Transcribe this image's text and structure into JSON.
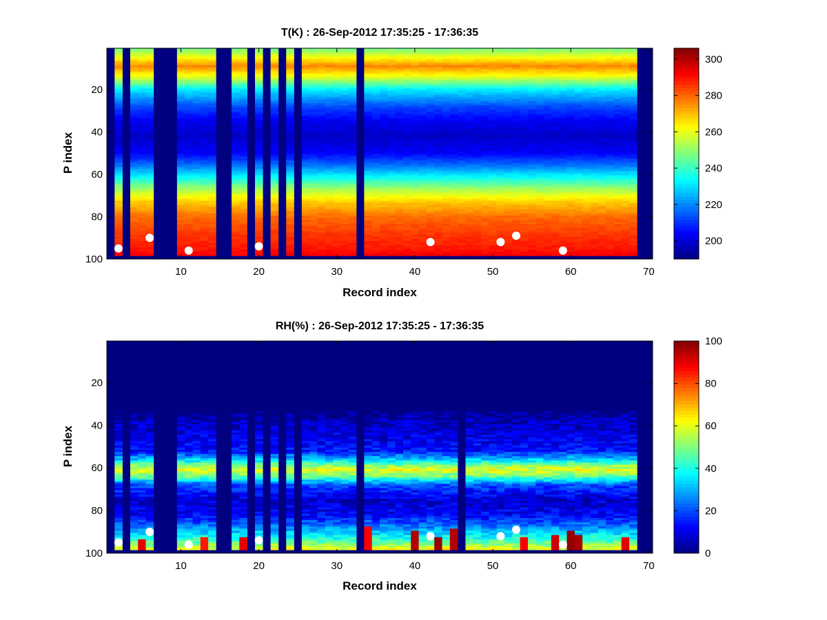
{
  "chart_data": [
    {
      "type": "heatmap",
      "title": "T(K) : 26-Sep-2012 17:35:25 - 17:36:35",
      "xlabel": "Record index",
      "ylabel": "P index",
      "xlim": [
        0.5,
        70.5
      ],
      "ylim": [
        100,
        1
      ],
      "xticks": [
        10,
        20,
        30,
        40,
        50,
        60,
        70
      ],
      "yticks": [
        20,
        40,
        60,
        80,
        100
      ],
      "colorbar": {
        "range": [
          190,
          306
        ],
        "ticks": [
          200,
          220,
          240,
          260,
          280,
          300
        ]
      },
      "colormap": "jet",
      "bottom_level_rows": 98,
      "missing_records": [
        1,
        3,
        7,
        8,
        9,
        15,
        16,
        19,
        21,
        23,
        25,
        33,
        69,
        70
      ],
      "profile_levels": [
        {
          "p": 1,
          "value": 248
        },
        {
          "p": 5,
          "value": 262
        },
        {
          "p": 9,
          "value": 276
        },
        {
          "p": 14,
          "value": 260
        },
        {
          "p": 20,
          "value": 232
        },
        {
          "p": 28,
          "value": 213
        },
        {
          "p": 35,
          "value": 203
        },
        {
          "p": 42,
          "value": 198
        },
        {
          "p": 50,
          "value": 204
        },
        {
          "p": 56,
          "value": 218
        },
        {
          "p": 62,
          "value": 236
        },
        {
          "p": 67,
          "value": 252
        },
        {
          "p": 73,
          "value": 268
        },
        {
          "p": 80,
          "value": 279
        },
        {
          "p": 88,
          "value": 285
        },
        {
          "p": 95,
          "value": 289
        },
        {
          "p": 98,
          "value": 292
        }
      ],
      "markers": [
        {
          "x": 2,
          "y": 95
        },
        {
          "x": 6,
          "y": 90
        },
        {
          "x": 11,
          "y": 96
        },
        {
          "x": 20,
          "y": 94
        },
        {
          "x": 42,
          "y": 92
        },
        {
          "x": 51,
          "y": 92
        },
        {
          "x": 53,
          "y": 89
        },
        {
          "x": 59,
          "y": 96
        }
      ]
    },
    {
      "type": "heatmap",
      "title": "RH(%) : 26-Sep-2012 17:35:25 - 17:36:35",
      "xlabel": "Record index",
      "ylabel": "P index",
      "xlim": [
        0.5,
        70.5
      ],
      "ylim": [
        100,
        1
      ],
      "xticks": [
        10,
        20,
        30,
        40,
        50,
        60,
        70
      ],
      "yticks": [
        20,
        40,
        60,
        80,
        100
      ],
      "colorbar": {
        "range": [
          0,
          100
        ],
        "ticks": [
          0,
          20,
          40,
          60,
          80,
          100
        ]
      },
      "colormap": "jet",
      "bottom_level_rows": 98,
      "missing_records": [
        1,
        3,
        7,
        8,
        9,
        15,
        16,
        19,
        21,
        23,
        25,
        33,
        46,
        69,
        70
      ],
      "profile_levels": [
        {
          "p": 1,
          "value": 0
        },
        {
          "p": 33,
          "value": 0
        },
        {
          "p": 38,
          "value": 6
        },
        {
          "p": 46,
          "value": 10
        },
        {
          "p": 52,
          "value": 14
        },
        {
          "p": 56,
          "value": 32
        },
        {
          "p": 59,
          "value": 52
        },
        {
          "p": 61,
          "value": 60
        },
        {
          "p": 64,
          "value": 48
        },
        {
          "p": 68,
          "value": 20
        },
        {
          "p": 75,
          "value": 8
        },
        {
          "p": 82,
          "value": 12
        },
        {
          "p": 88,
          "value": 26
        },
        {
          "p": 93,
          "value": 40
        },
        {
          "p": 96,
          "value": 52
        },
        {
          "p": 98,
          "value": 60
        }
      ],
      "hot_spots": [
        {
          "x": 5,
          "p_from": 94,
          "p_to": 98,
          "value": 90
        },
        {
          "x": 13,
          "p_from": 93,
          "p_to": 98,
          "value": 85
        },
        {
          "x": 18,
          "p_from": 93,
          "p_to": 98,
          "value": 90
        },
        {
          "x": 34,
          "p_from": 88,
          "p_to": 98,
          "value": 88
        },
        {
          "x": 40,
          "p_from": 90,
          "p_to": 98,
          "value": 95
        },
        {
          "x": 43,
          "p_from": 93,
          "p_to": 98,
          "value": 98
        },
        {
          "x": 45,
          "p_from": 89,
          "p_to": 98,
          "value": 95
        },
        {
          "x": 54,
          "p_from": 93,
          "p_to": 98,
          "value": 88
        },
        {
          "x": 58,
          "p_from": 92,
          "p_to": 98,
          "value": 92
        },
        {
          "x": 60,
          "p_from": 90,
          "p_to": 98,
          "value": 98
        },
        {
          "x": 61,
          "p_from": 92,
          "p_to": 98,
          "value": 96
        },
        {
          "x": 67,
          "p_from": 93,
          "p_to": 98,
          "value": 90
        }
      ],
      "markers": [
        {
          "x": 2,
          "y": 95
        },
        {
          "x": 6,
          "y": 90
        },
        {
          "x": 11,
          "y": 96
        },
        {
          "x": 20,
          "y": 94
        },
        {
          "x": 42,
          "y": 92
        },
        {
          "x": 51,
          "y": 92
        },
        {
          "x": 53,
          "y": 89
        },
        {
          "x": 59,
          "y": 96
        }
      ]
    }
  ]
}
